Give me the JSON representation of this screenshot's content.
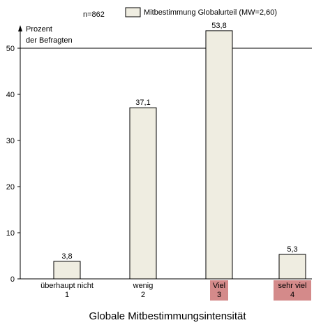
{
  "chart_data": {
    "type": "bar",
    "sample_size": "n=862",
    "legend_entry": "Mitbestimmung Globalurteil (MW=2,60)",
    "ylabel_line1": "Prozent",
    "ylabel_line2": "der Befragten",
    "xlabel": "Globale Mitbestimmungsintensität",
    "ylim": [
      0,
      56
    ],
    "yticks": [
      0,
      10,
      20,
      30,
      40,
      50
    ],
    "reference_line": 50,
    "grid": false,
    "legend_position": "top",
    "categories": [
      {
        "name": "überhaupt nicht",
        "code": "1",
        "highlight": false
      },
      {
        "name": "wenig",
        "code": "2",
        "highlight": false
      },
      {
        "name": "Viel",
        "code": "3",
        "highlight": true
      },
      {
        "name": "sehr viel",
        "code": "4",
        "highlight": true
      }
    ],
    "series": [
      {
        "name": "Mitbestimmung Globalurteil (MW=2,60)",
        "values": [
          3.8,
          37.1,
          53.8,
          5.3
        ],
        "value_labels": [
          "3,8",
          "37,1",
          "53,8",
          "5,3"
        ]
      }
    ],
    "colors": {
      "bar_fill": "#efede1",
      "bar_stroke": "#000000",
      "highlight": "#d48a8a",
      "axis": "#000000"
    }
  }
}
